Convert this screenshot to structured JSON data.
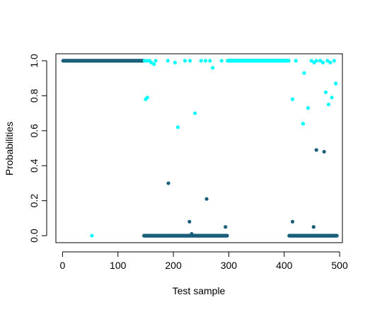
{
  "chart_data": {
    "type": "scatter",
    "title": "",
    "xlabel": "Test sample",
    "ylabel": "Probabilities",
    "xlim": [
      -12,
      505
    ],
    "ylim": [
      -0.04,
      1.04
    ],
    "x_ticks": [
      "0",
      "100",
      "200",
      "300",
      "400",
      "500"
    ],
    "y_ticks": [
      "0.0",
      "0.2",
      "0.4",
      "0.6",
      "0.8",
      "1.0"
    ],
    "grid": false,
    "legend": "none",
    "series": [
      {
        "color": "#1a5e7a",
        "runs": [
          {
            "from": 1,
            "to": 146,
            "y": 1.0
          },
          {
            "from": 147,
            "to": 297,
            "y": 0.0
          },
          {
            "from": 298,
            "to": 408,
            "y": 1.0
          },
          {
            "from": 409,
            "to": 495,
            "y": 0.0
          }
        ],
        "outliers": [
          {
            "x": 191,
            "y": 0.3
          },
          {
            "x": 229,
            "y": 0.08
          },
          {
            "x": 233,
            "y": 0.01
          },
          {
            "x": 260,
            "y": 0.21
          },
          {
            "x": 294,
            "y": 0.05
          },
          {
            "x": 415,
            "y": 0.08
          },
          {
            "x": 453,
            "y": 0.05
          },
          {
            "x": 458,
            "y": 0.49
          },
          {
            "x": 472,
            "y": 0.48
          }
        ]
      },
      {
        "color": "#00ffff",
        "runs": [
          {
            "from": 298,
            "to": 408,
            "y": 1.0
          }
        ],
        "points": [
          {
            "x": 53,
            "y": 0.0
          },
          {
            "x": 148,
            "y": 1.0
          },
          {
            "x": 150,
            "y": 0.78
          },
          {
            "x": 152,
            "y": 1.0
          },
          {
            "x": 153,
            "y": 0.79
          },
          {
            "x": 157,
            "y": 1.0
          },
          {
            "x": 160,
            "y": 0.99
          },
          {
            "x": 165,
            "y": 0.98
          },
          {
            "x": 168,
            "y": 1.0
          },
          {
            "x": 190,
            "y": 1.0
          },
          {
            "x": 203,
            "y": 0.99
          },
          {
            "x": 208,
            "y": 0.62
          },
          {
            "x": 221,
            "y": 1.0
          },
          {
            "x": 230,
            "y": 1.0
          },
          {
            "x": 239,
            "y": 0.7
          },
          {
            "x": 250,
            "y": 1.0
          },
          {
            "x": 258,
            "y": 1.0
          },
          {
            "x": 266,
            "y": 1.0
          },
          {
            "x": 271,
            "y": 0.96
          },
          {
            "x": 287,
            "y": 1.0
          },
          {
            "x": 415,
            "y": 0.78
          },
          {
            "x": 421,
            "y": 1.0
          },
          {
            "x": 434,
            "y": 0.64
          },
          {
            "x": 436,
            "y": 0.93
          },
          {
            "x": 443,
            "y": 0.73
          },
          {
            "x": 449,
            "y": 1.0
          },
          {
            "x": 454,
            "y": 0.99
          },
          {
            "x": 458,
            "y": 1.0
          },
          {
            "x": 465,
            "y": 1.0
          },
          {
            "x": 470,
            "y": 0.99
          },
          {
            "x": 475,
            "y": 0.82
          },
          {
            "x": 478,
            "y": 1.0
          },
          {
            "x": 480,
            "y": 0.75
          },
          {
            "x": 483,
            "y": 0.99
          },
          {
            "x": 486,
            "y": 0.79
          },
          {
            "x": 490,
            "y": 1.0
          },
          {
            "x": 493,
            "y": 0.87
          }
        ]
      }
    ]
  }
}
